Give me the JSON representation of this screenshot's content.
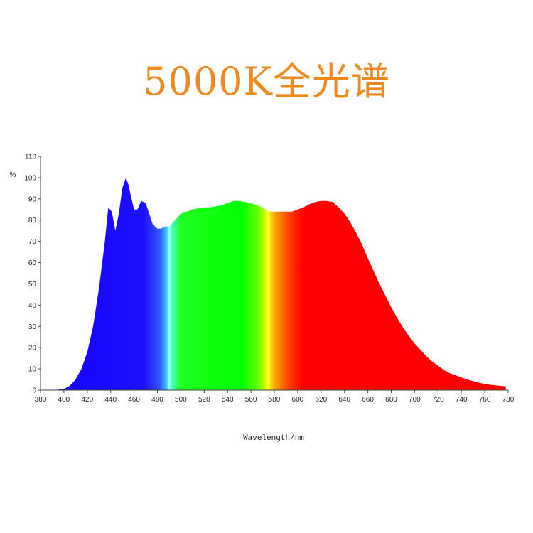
{
  "title": "5000K全光谱",
  "colors": {
    "title": "#ee8a1f",
    "axis": "#444444"
  },
  "chart_data": {
    "type": "area",
    "title": "5000K全光谱",
    "xlabel": "Wavelength/nm",
    "ylabel": "%",
    "xlim": [
      380,
      780
    ],
    "ylim": [
      0,
      110
    ],
    "xticks": [
      380,
      400,
      420,
      440,
      460,
      480,
      500,
      520,
      540,
      560,
      580,
      600,
      620,
      640,
      660,
      680,
      700,
      720,
      740,
      760,
      780
    ],
    "yticks": [
      0,
      10,
      20,
      30,
      40,
      50,
      60,
      70,
      80,
      90,
      100,
      110
    ],
    "grid": false,
    "fill": "visible-spectrum-gradient",
    "series": [
      {
        "x": [
          380,
          390,
          395,
          400,
          405,
          410,
          415,
          420,
          425,
          430,
          435,
          438,
          441,
          444,
          447,
          450,
          453,
          455,
          457,
          460,
          463,
          466,
          470,
          473,
          476,
          480,
          483,
          486,
          490,
          495,
          500,
          505,
          510,
          515,
          520,
          525,
          530,
          535,
          540,
          545,
          550,
          555,
          560,
          565,
          570,
          575,
          580,
          585,
          590,
          595,
          600,
          605,
          610,
          615,
          620,
          625,
          630,
          635,
          640,
          645,
          650,
          655,
          660,
          665,
          670,
          675,
          680,
          685,
          690,
          695,
          700,
          705,
          710,
          715,
          720,
          725,
          730,
          735,
          740,
          745,
          750,
          755,
          760,
          765,
          770,
          775,
          778
        ],
        "y": [
          0,
          0,
          0.2,
          0.6,
          2,
          5,
          10,
          18,
          30,
          48,
          70,
          86,
          84,
          75,
          83,
          95,
          100,
          97,
          92,
          85,
          85,
          89,
          88,
          83,
          78,
          76,
          76,
          77,
          77,
          80,
          83,
          84,
          85,
          85.5,
          86,
          86,
          86.5,
          87,
          88,
          89,
          89,
          88.5,
          88,
          87,
          86,
          84,
          84,
          84,
          84,
          84,
          85,
          86,
          87.5,
          88.5,
          89,
          89,
          88.5,
          86,
          83,
          79,
          74,
          68.5,
          62,
          56,
          50,
          44.5,
          39,
          34,
          29.5,
          25.5,
          22,
          19,
          16,
          13.5,
          11.5,
          9.5,
          8,
          7,
          6,
          5,
          4.2,
          3.5,
          2.9,
          2.5,
          2.2,
          1.9,
          1.8
        ]
      }
    ]
  }
}
